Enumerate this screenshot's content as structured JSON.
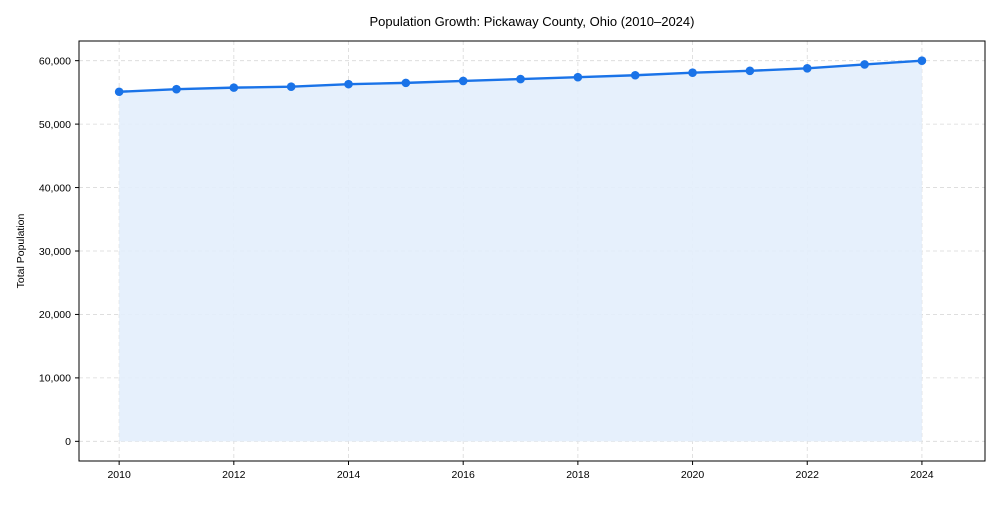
{
  "chart_data": {
    "type": "line",
    "title": "Population Growth: Pickaway County, Ohio (2010–2024)",
    "xlabel": "",
    "ylabel": "Total Population",
    "x": [
      2010,
      2011,
      2012,
      2013,
      2014,
      2015,
      2016,
      2017,
      2018,
      2019,
      2020,
      2021,
      2022,
      2023,
      2024
    ],
    "series": [
      {
        "name": "Total Population",
        "values": [
          55100,
          55500,
          55750,
          55900,
          56300,
          56500,
          56800,
          57100,
          57400,
          57700,
          58100,
          58400,
          58800,
          59400,
          60000
        ],
        "color": "#1a73e8",
        "fill": "#e3eefc",
        "marker": "circle",
        "area_fill": true
      }
    ],
    "xticks": [
      "2010",
      "2012",
      "2014",
      "2016",
      "2018",
      "2020",
      "2022",
      "2024"
    ],
    "yticks": [
      "0",
      "10,000",
      "20,000",
      "30,000",
      "40,000",
      "50,000",
      "60,000"
    ],
    "ytick_values": [
      0,
      10000,
      20000,
      30000,
      40000,
      50000,
      60000
    ],
    "xtick_values": [
      2010,
      2012,
      2014,
      2016,
      2018,
      2020,
      2022,
      2024
    ],
    "xlim": [
      2009.3,
      2025.1
    ],
    "ylim": [
      -3100,
      63100
    ],
    "grid": true,
    "legend": null
  },
  "colors": {
    "line": "#1a73e8",
    "area": "#e3eefc",
    "grid": "#d9d9d9",
    "axis": "#000000"
  }
}
